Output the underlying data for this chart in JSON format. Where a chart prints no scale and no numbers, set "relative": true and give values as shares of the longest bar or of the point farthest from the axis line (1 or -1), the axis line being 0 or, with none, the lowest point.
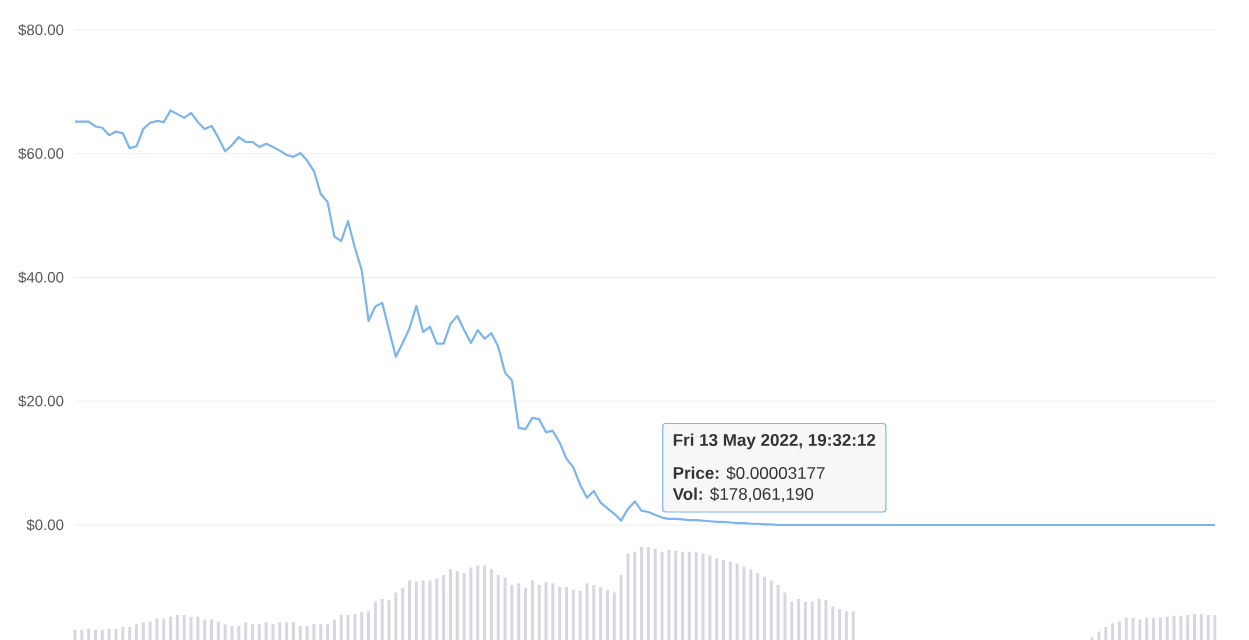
{
  "chart_data": [
    {
      "type": "line",
      "color": "#7cb5ec",
      "grid": "y",
      "categories": [
        null,
        null,
        null,
        null,
        null,
        null,
        null,
        null,
        null,
        null,
        null,
        null,
        null,
        null,
        null,
        null,
        null,
        null,
        null,
        null,
        null,
        null,
        null,
        null,
        null,
        null,
        null,
        null,
        null,
        null,
        null,
        null,
        null,
        null,
        null,
        null,
        null,
        null,
        null,
        null,
        null,
        null,
        null,
        null,
        null,
        null,
        null,
        null,
        null,
        null,
        null,
        null,
        null,
        null,
        null,
        null,
        null,
        null,
        null,
        null,
        null,
        null,
        null,
        null,
        null,
        null,
        null,
        null,
        null,
        null,
        null,
        null,
        null,
        null,
        null,
        null,
        null,
        null,
        null,
        null,
        null,
        null,
        null,
        null,
        null,
        null,
        null,
        null,
        null,
        null,
        null,
        null,
        null,
        null,
        null,
        null,
        null,
        null,
        null,
        null,
        null,
        null,
        null,
        null,
        null,
        null,
        null,
        null,
        null,
        null,
        null,
        null,
        null,
        null,
        null,
        null,
        null,
        null,
        null,
        null,
        null,
        null,
        null,
        null,
        null,
        null,
        null,
        null,
        null,
        null,
        null,
        null,
        null,
        null,
        null,
        null,
        null,
        null,
        null,
        null,
        null,
        null,
        null,
        null,
        null,
        null,
        null,
        null,
        null,
        null,
        null,
        null,
        null,
        null,
        null,
        null,
        null,
        null,
        null,
        null,
        null,
        null,
        null,
        null,
        null,
        null,
        null,
        null
      ],
      "values": [
        65.2,
        65.2,
        65.2,
        64.4,
        64.2,
        63.0,
        63.6,
        63.3,
        60.9,
        61.2,
        64.0,
        65.0,
        65.3,
        65.1,
        67.0,
        66.4,
        65.8,
        66.6,
        65.1,
        64.0,
        64.5,
        62.6,
        60.4,
        61.4,
        62.7,
        61.9,
        61.9,
        61.1,
        61.6,
        61.1,
        60.5,
        59.8,
        59.5,
        60.1,
        58.9,
        57.2,
        53.5,
        52.2,
        46.6,
        45.9,
        49.1,
        44.8,
        41.2,
        33.0,
        35.3,
        35.9,
        31.5,
        27.2,
        29.4,
        31.8,
        35.4,
        31.2,
        32.0,
        29.3,
        29.3,
        32.5,
        33.8,
        31.5,
        29.4,
        31.5,
        30.1,
        31.0,
        28.8,
        24.6,
        23.4,
        15.7,
        15.5,
        17.3,
        17.1,
        15.0,
        15.2,
        13.3,
        10.7,
        9.3,
        6.5,
        4.4,
        5.5,
        3.6,
        2.7,
        1.8,
        0.7,
        2.6,
        3.8,
        2.3,
        2.1,
        1.6,
        1.2,
        1.0,
        1.0,
        0.9,
        0.8,
        0.8,
        0.7,
        0.6,
        0.5,
        0.5,
        0.4,
        0.3,
        0.3,
        0.2,
        0.2,
        0.1,
        0.1,
        0,
        0,
        0,
        0,
        0,
        0,
        0,
        0,
        0,
        0,
        0,
        0,
        0,
        0,
        0,
        0,
        0,
        0,
        0,
        0,
        0,
        0,
        0,
        0,
        0,
        0,
        0,
        0,
        0,
        0,
        0,
        0,
        0,
        0,
        0,
        0,
        0,
        0,
        0,
        0,
        0,
        0,
        0,
        0,
        0,
        0,
        0,
        0,
        0,
        0,
        0,
        0,
        0,
        0,
        0,
        0,
        0,
        0,
        0,
        0,
        0,
        0,
        0,
        0,
        0
      ],
      "ylim": [
        0,
        80
      ],
      "yticks": [
        {
          "value": 0,
          "label": "$0.00"
        },
        {
          "value": 20,
          "label": "$20.00"
        },
        {
          "value": 40,
          "label": "$40.00"
        },
        {
          "value": 60,
          "label": "$60.00"
        },
        {
          "value": 80,
          "label": "$80.00"
        }
      ],
      "annotations": [
        "Fri 13 May 2022, 19:32:12",
        "**Price:** $0.00003177",
        "**Vol:** $178,061,190"
      ]
    },
    {
      "type": "bar",
      "color": "#d5d8e1",
      "relative": true,
      "categories": [
        null,
        null,
        null,
        null,
        null,
        null,
        null,
        null,
        null,
        null,
        null,
        null,
        null,
        null,
        null,
        null,
        null,
        null,
        null,
        null,
        null,
        null,
        null,
        null,
        null,
        null,
        null,
        null,
        null,
        null,
        null,
        null,
        null,
        null,
        null,
        null,
        null,
        null,
        null,
        null,
        null,
        null,
        null,
        null,
        null,
        null,
        null,
        null,
        null,
        null,
        null,
        null,
        null,
        null,
        null,
        null,
        null,
        null,
        null,
        null,
        null,
        null,
        null,
        null,
        null,
        null,
        null,
        null,
        null,
        null,
        null,
        null,
        null,
        null,
        null,
        null,
        null,
        null,
        null,
        null,
        null,
        null,
        null,
        null,
        null,
        null,
        null,
        null,
        null,
        null,
        null,
        null,
        null,
        null,
        null,
        null,
        null,
        null,
        null,
        null,
        null,
        null,
        null,
        null,
        null,
        null,
        null,
        null,
        null,
        null,
        null,
        null,
        null,
        null,
        null,
        null,
        null,
        null,
        null,
        null,
        null,
        null,
        null,
        null,
        null,
        null,
        null,
        null,
        null,
        null,
        null,
        null,
        null,
        null,
        null,
        null,
        null,
        null,
        null,
        null,
        null,
        null,
        null,
        null,
        null,
        null,
        null,
        null,
        null,
        null,
        null,
        null,
        null,
        null,
        null,
        null,
        null,
        null,
        null,
        null,
        null,
        null,
        null,
        null,
        null,
        null,
        null,
        null
      ],
      "values": [
        0.11,
        0.11,
        0.12,
        0.11,
        0.11,
        0.12,
        0.12,
        0.14,
        0.14,
        0.17,
        0.19,
        0.2,
        0.23,
        0.23,
        0.25,
        0.27,
        0.27,
        0.25,
        0.25,
        0.22,
        0.22,
        0.2,
        0.17,
        0.15,
        0.15,
        0.19,
        0.17,
        0.17,
        0.19,
        0.17,
        0.19,
        0.19,
        0.19,
        0.15,
        0.15,
        0.17,
        0.17,
        0.17,
        0.22,
        0.27,
        0.27,
        0.28,
        0.3,
        0.31,
        0.41,
        0.44,
        0.43,
        0.51,
        0.56,
        0.64,
        0.63,
        0.64,
        0.64,
        0.66,
        0.7,
        0.76,
        0.74,
        0.72,
        0.78,
        0.8,
        0.8,
        0.76,
        0.7,
        0.67,
        0.59,
        0.61,
        0.56,
        0.64,
        0.59,
        0.62,
        0.61,
        0.57,
        0.57,
        0.54,
        0.53,
        0.61,
        0.59,
        0.57,
        0.54,
        0.51,
        0.7,
        0.93,
        0.95,
        1,
        1,
        0.98,
        0.95,
        0.97,
        0.96,
        0.95,
        0.95,
        0.94,
        0.93,
        0.91,
        0.88,
        0.86,
        0.84,
        0.82,
        0.79,
        0.76,
        0.72,
        0.68,
        0.64,
        0.59,
        0.51,
        0.41,
        0.44,
        0.41,
        0.41,
        0.44,
        0.43,
        0.36,
        0.33,
        0.31,
        0.31,
        null,
        null,
        null,
        null,
        null,
        null,
        null,
        null,
        null,
        null,
        null,
        null,
        null,
        null,
        null,
        null,
        null,
        null,
        null,
        null,
        null,
        null,
        null,
        null,
        null,
        null,
        null,
        null,
        null,
        null,
        null,
        null,
        null,
        null,
        0.03,
        0.09,
        0.14,
        0.18,
        0.2,
        0.24,
        0.24,
        0.22,
        0.24,
        0.24,
        0.24,
        0.25,
        0.26,
        0.26,
        0.27,
        0.28,
        0.28,
        0.27,
        0.27
      ]
    }
  ]
}
